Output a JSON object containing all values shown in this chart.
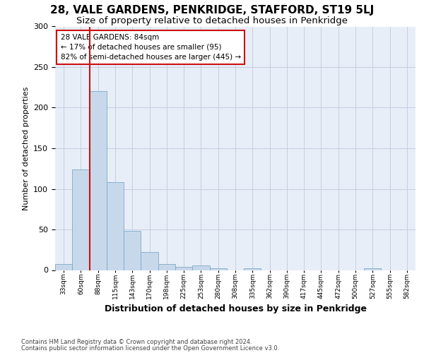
{
  "title": "28, VALE GARDENS, PENKRIDGE, STAFFORD, ST19 5LJ",
  "subtitle": "Size of property relative to detached houses in Penkridge",
  "xlabel": "Distribution of detached houses by size in Penkridge",
  "ylabel": "Number of detached properties",
  "bin_labels": [
    "33sqm",
    "60sqm",
    "88sqm",
    "115sqm",
    "143sqm",
    "170sqm",
    "198sqm",
    "225sqm",
    "253sqm",
    "280sqm",
    "308sqm",
    "335sqm",
    "362sqm",
    "390sqm",
    "417sqm",
    "445sqm",
    "472sqm",
    "500sqm",
    "527sqm",
    "555sqm",
    "582sqm"
  ],
  "bar_heights": [
    7,
    124,
    220,
    108,
    48,
    22,
    7,
    4,
    6,
    2,
    0,
    2,
    0,
    0,
    0,
    0,
    0,
    0,
    2,
    0,
    0
  ],
  "bar_color": "#c8d8eb",
  "bar_edge_color": "#7aaac8",
  "grid_color": "#c5cfe0",
  "bg_color": "#e8eef8",
  "vline_x": 1.5,
  "vline_color": "#cc1111",
  "annotation_text": "28 VALE GARDENS: 84sqm\n← 17% of detached houses are smaller (95)\n82% of semi-detached houses are larger (445) →",
  "annotation_box_facecolor": "#ffffff",
  "annotation_box_edgecolor": "#cc1111",
  "footnote1": "Contains HM Land Registry data © Crown copyright and database right 2024.",
  "footnote2": "Contains public sector information licensed under the Open Government Licence v3.0.",
  "ylim": [
    0,
    300
  ],
  "yticks": [
    0,
    50,
    100,
    150,
    200,
    250,
    300
  ]
}
